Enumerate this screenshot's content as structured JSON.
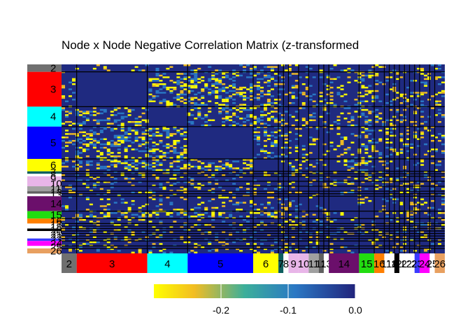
{
  "title": "Node x Node Negative Correlation Matrix (z-transformed",
  "chart_data": {
    "type": "heatmap",
    "title": "Node x Node Negative Correlation Matrix (z-transformed",
    "networks": [
      {
        "label": "2",
        "color": "#707070",
        "size": 3
      },
      {
        "label": "3",
        "color": "#ff0000",
        "size": 14
      },
      {
        "label": "4",
        "color": "#00ffff",
        "size": 8
      },
      {
        "label": "5",
        "color": "#0000ff",
        "size": 13
      },
      {
        "label": "6",
        "color": "#ffff00",
        "size": 5
      },
      {
        "label": "7",
        "color": "#0d5e5e",
        "size": 1
      },
      {
        "label": "8",
        "color": "#ffffff",
        "size": 1
      },
      {
        "label": "9",
        "color": "#e8b5e8",
        "size": 2
      },
      {
        "label": "10",
        "color": "#e8b5e8",
        "size": 2
      },
      {
        "label": "11",
        "color": "#a0a0a0",
        "size": 2
      },
      {
        "label": "12",
        "color": "#606060",
        "size": 1
      },
      {
        "label": "13",
        "color": "#ffffff",
        "size": 1
      },
      {
        "label": "14",
        "color": "#6b0f6b",
        "size": 6
      },
      {
        "label": "15",
        "color": "#22dd11",
        "size": 3
      },
      {
        "label": "16",
        "color": "#ff7f00",
        "size": 2
      },
      {
        "label": "17",
        "color": "#ffffff",
        "size": 1
      },
      {
        "label": "18",
        "color": "#ffffff",
        "size": 1
      },
      {
        "label": "19",
        "color": "#000000",
        "size": 1
      },
      {
        "label": "20",
        "color": "#ffffff",
        "size": 1
      },
      {
        "label": "21",
        "color": "#ffffff",
        "size": 1
      },
      {
        "label": "22",
        "color": "#ffffff",
        "size": 1
      },
      {
        "label": "23",
        "color": "#3a3aff",
        "size": 1
      },
      {
        "label": "24",
        "color": "#ff00ff",
        "size": 2
      },
      {
        "label": "25",
        "color": "#ffffff",
        "size": 1
      },
      {
        "label": "26",
        "color": "#e8a060",
        "size": 2
      }
    ],
    "colorbar": {
      "range": [
        -0.3,
        0.0
      ],
      "ticks": [
        -0.2,
        -0.1,
        0.0
      ],
      "tick_labels": [
        "-0.2",
        "-0.1",
        "0.0"
      ],
      "low_color": "#ffff00",
      "high_color": "#21247c"
    },
    "cell_color_low": "#ffff00",
    "cell_color_mid": "#2a78c4",
    "cell_color_high": "#1f2a80",
    "separator_color": "#000000"
  }
}
